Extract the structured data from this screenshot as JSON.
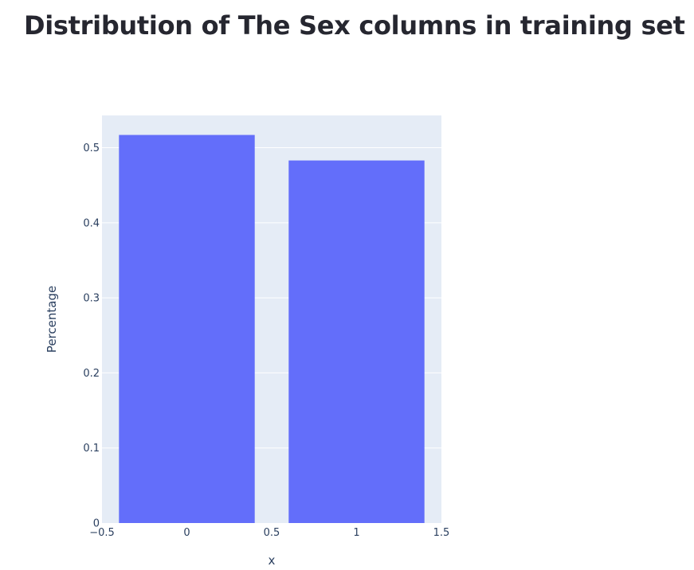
{
  "page": {
    "title": "Distribution of The Sex columns in training set"
  },
  "chart_data": {
    "type": "bar",
    "x": [
      0,
      1
    ],
    "values": [
      0.517,
      0.483
    ],
    "xlabel": "x",
    "ylabel": "Percentage",
    "xlim": [
      -0.5,
      1.5
    ],
    "ylim": [
      0,
      0.543
    ],
    "bar_width": 0.8,
    "x_ticks": [
      -0.5,
      0,
      0.5,
      1,
      1.5
    ],
    "x_tick_labels": [
      "−0.5",
      "0",
      "0.5",
      "1",
      "1.5"
    ],
    "y_ticks": [
      0,
      0.1,
      0.2,
      0.3,
      0.4,
      0.5
    ],
    "y_tick_labels": [
      "0",
      "0.1",
      "0.2",
      "0.3",
      "0.4",
      "0.5"
    ],
    "grid": true,
    "bar_color": "#636efa",
    "plot_background": "#e5ecf6",
    "gridline_color": "#ffffff",
    "text_color": "#2a3f5f"
  }
}
